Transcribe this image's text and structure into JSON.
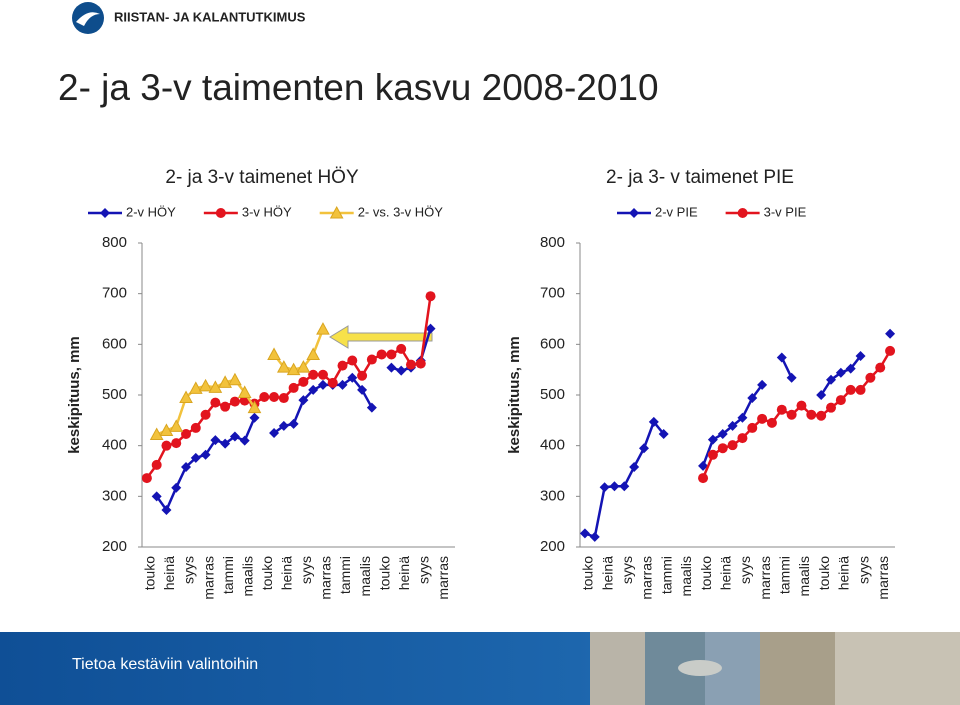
{
  "header": {
    "logo": "RIISTAN- JA KALANTUTKIMUS"
  },
  "title": "2- ja 3-v taimenten kasvu 2008-2010",
  "chart_data": [
    {
      "type": "line",
      "title": "2- ja 3-v taimenet HÖY",
      "y_label": "keskipituus, mm",
      "categories": [
        "touko",
        null,
        "heinä",
        null,
        "syys",
        null,
        "marras",
        null,
        "tammi",
        null,
        "maalis",
        null,
        "touko",
        null,
        "heinä",
        null,
        "syys",
        null,
        "marras",
        null,
        "tammi",
        null,
        "maalis",
        null,
        "touko",
        null,
        "heinä",
        null,
        "syys",
        null,
        "marras",
        null
      ],
      "ylim": [
        200,
        800
      ],
      "yticks": [
        200,
        300,
        400,
        500,
        600,
        700,
        800
      ],
      "legend": "top",
      "series": [
        {
          "name": "2-v HÖY",
          "color": "#1414b4",
          "marker": "diamond",
          "values": [
            null,
            300,
            273,
            317,
            358,
            376,
            382,
            411,
            404,
            418,
            410,
            455,
            null,
            425,
            439,
            443,
            490,
            510,
            520,
            520,
            520,
            534,
            510,
            475,
            null,
            554,
            548,
            554,
            568,
            631,
            null,
            null
          ]
        },
        {
          "name": "3-v HÖY",
          "color": "#e2141e",
          "marker": "circle",
          "values": [
            336,
            362,
            400,
            405,
            423,
            435,
            461,
            485,
            477,
            487,
            489,
            483,
            496,
            496,
            494,
            514,
            526,
            540,
            540,
            524,
            558,
            568,
            538,
            570,
            580,
            580,
            591,
            560,
            562,
            695,
            null,
            null
          ]
        },
        {
          "name": "2- vs. 3-v HÖY",
          "color": "#f2c23c",
          "marker": "triangle",
          "values": [
            null,
            422,
            430,
            438,
            495,
            513,
            518,
            515,
            525,
            530,
            505,
            475,
            null,
            580,
            555,
            550,
            555,
            580,
            630,
            null,
            null,
            null,
            null,
            null,
            null,
            null,
            null,
            null,
            null,
            null,
            null,
            null
          ]
        }
      ]
    },
    {
      "type": "line",
      "title": "2- ja 3- v taimenet PIE",
      "y_label": "keskipituus, mm",
      "categories": [
        "touko",
        null,
        "heinä",
        null,
        "syys",
        null,
        "marras",
        null,
        "tammi",
        null,
        "maalis",
        null,
        "touko",
        null,
        "heinä",
        null,
        "syys",
        null,
        "marras",
        null,
        "tammi",
        null,
        "maalis",
        null,
        "touko",
        null,
        "heinä",
        null,
        "syys",
        null,
        "marras",
        null
      ],
      "ylim": [
        200,
        800
      ],
      "yticks": [
        200,
        300,
        400,
        500,
        600,
        700,
        800
      ],
      "legend": "top",
      "series": [
        {
          "name": "2-v PIE",
          "color": "#1414b4",
          "marker": "diamond",
          "values": [
            227,
            220,
            318,
            320,
            320,
            358,
            395,
            447,
            423,
            null,
            null,
            null,
            360,
            412,
            423,
            439,
            455,
            494,
            520,
            null,
            574,
            534,
            null,
            null,
            500,
            530,
            544,
            552,
            577,
            null,
            null,
            621
          ]
        },
        {
          "name": "3-v PIE",
          "color": "#e2141e",
          "marker": "circle",
          "values": [
            null,
            null,
            null,
            null,
            null,
            null,
            null,
            null,
            null,
            null,
            null,
            null,
            336,
            382,
            395,
            401,
            415,
            435,
            453,
            445,
            471,
            461,
            479,
            461,
            459,
            475,
            490,
            510,
            510,
            534,
            554,
            587
          ]
        }
      ]
    }
  ],
  "footer": {
    "text": "Tietoa kestäviin valintoihin"
  }
}
